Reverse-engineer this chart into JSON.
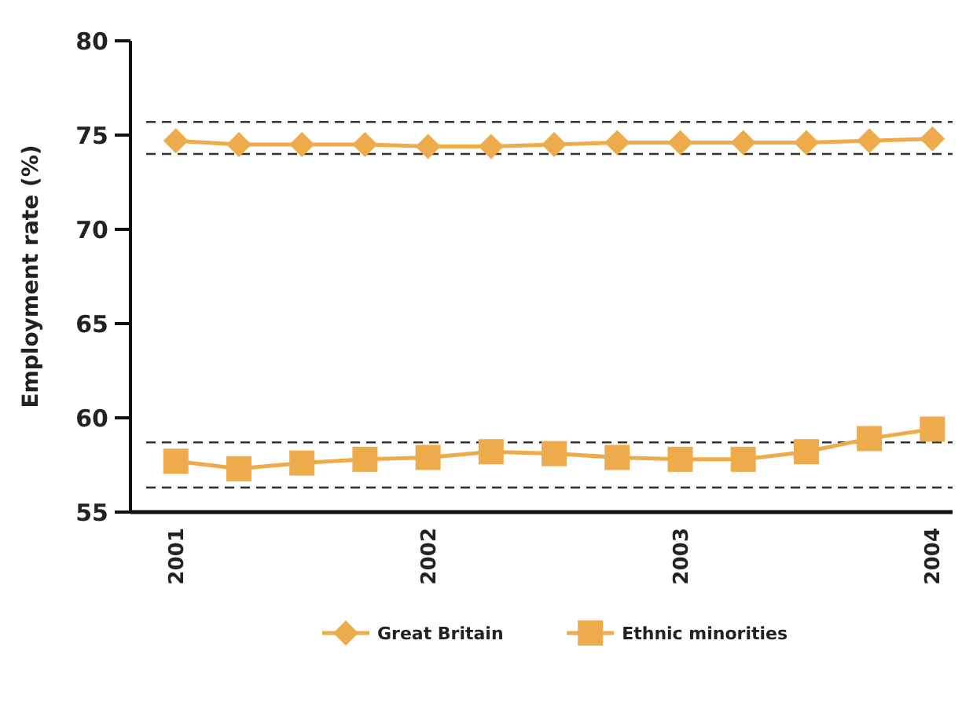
{
  "chart_data": {
    "type": "line",
    "ylabel": "Employment rate (%)",
    "x": [
      2001,
      2001.25,
      2001.5,
      2001.75,
      2002,
      2002.25,
      2002.5,
      2002.75,
      2003,
      2003.25,
      2003.5,
      2003.75,
      2004
    ],
    "xlim": [
      2000.82,
      2004.08
    ],
    "xticks": [
      2001,
      2002,
      2003,
      2004
    ],
    "ylim": [
      55,
      80
    ],
    "yticks": [
      55,
      60,
      65,
      70,
      75,
      80
    ],
    "series": [
      {
        "name": "Great Britain",
        "color": "#eeab4c",
        "marker": "diamond",
        "values": [
          74.7,
          74.5,
          74.5,
          74.5,
          74.4,
          74.4,
          74.5,
          74.6,
          74.6,
          74.6,
          74.6,
          74.7,
          74.8
        ]
      },
      {
        "name": "Ethnic minorities",
        "color": "#eeab4c",
        "marker": "square",
        "values": [
          57.7,
          57.3,
          57.6,
          57.8,
          57.9,
          58.2,
          58.1,
          57.9,
          57.8,
          57.8,
          58.2,
          58.9,
          59.4
        ]
      }
    ],
    "ref_lines": [
      {
        "axis": "y",
        "value": 75.7,
        "color": "#333333",
        "line_style": "dashed"
      },
      {
        "axis": "y",
        "value": 74.0,
        "color": "#333333",
        "line_style": "dashed"
      },
      {
        "axis": "y",
        "value": 58.7,
        "color": "#333333",
        "line_style": "dashed"
      },
      {
        "axis": "y",
        "value": 56.3,
        "color": "#333333",
        "line_style": "dashed"
      }
    ],
    "grid": false,
    "legend": "bottom"
  }
}
